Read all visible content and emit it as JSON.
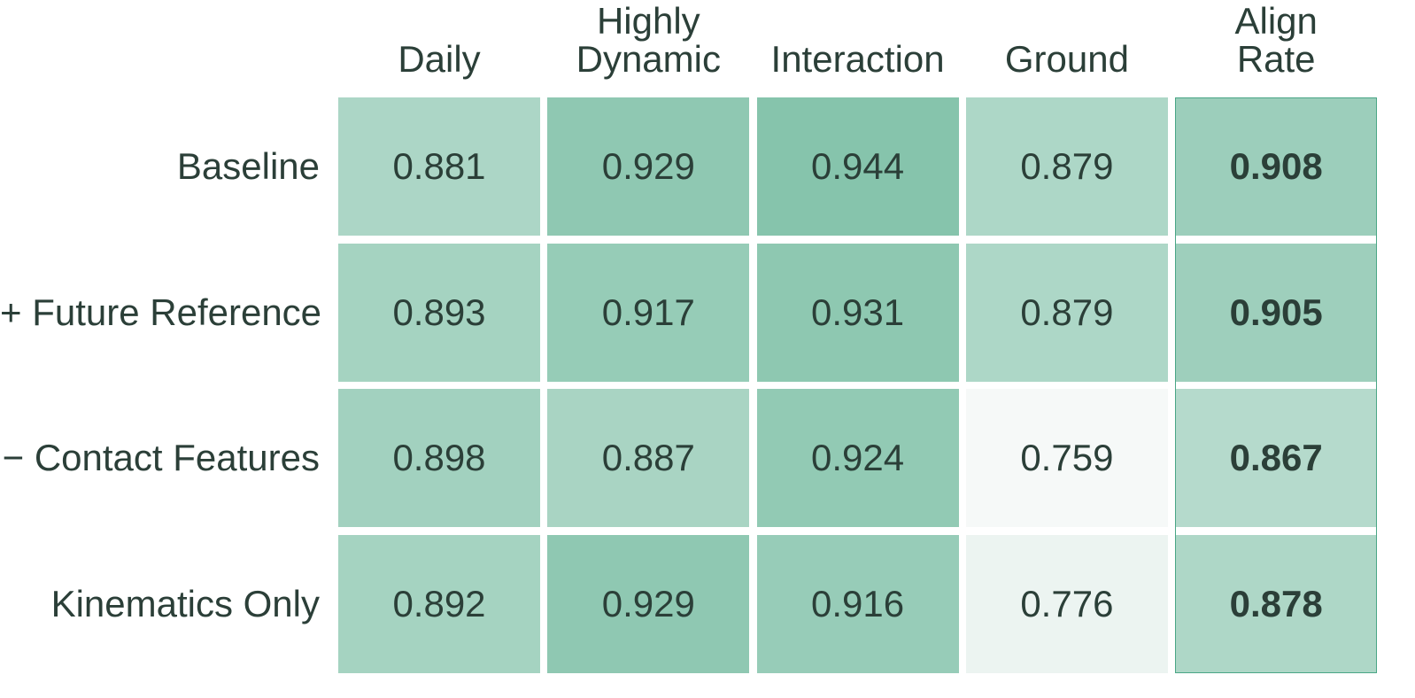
{
  "chart_data": {
    "type": "heatmap",
    "columns": [
      "Daily",
      "Highly\nDynamic",
      "Interaction",
      "Ground",
      "Align\nRate"
    ],
    "rows": [
      "Baseline",
      "+ Future Reference",
      "− Contact Features",
      "Kinematics Only"
    ],
    "values": [
      [
        "0.881",
        "0.929",
        "0.944",
        "0.879",
        "0.908"
      ],
      [
        "0.893",
        "0.917",
        "0.931",
        "0.879",
        "0.905"
      ],
      [
        "0.898",
        "0.887",
        "0.924",
        "0.759",
        "0.867"
      ],
      [
        "0.892",
        "0.929",
        "0.916",
        "0.776",
        "0.878"
      ]
    ],
    "bold_column": "Align\nRate",
    "colormap": {
      "low": "#f6f9f8",
      "high": "#86c4ac"
    },
    "value_range": [
      0.759,
      0.944
    ]
  }
}
